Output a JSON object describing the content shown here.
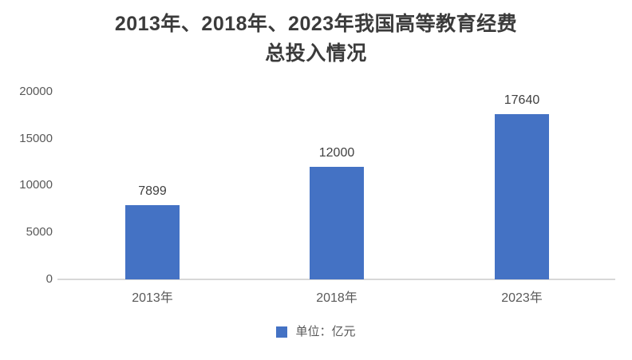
{
  "title": {
    "line1": "2013年、2018年、2023年我国高等教育经费",
    "line2": "总投入情况"
  },
  "chart_data": {
    "type": "bar",
    "title": "2013年、2018年、2023年我国高等教育经费总投入情况",
    "categories": [
      "2013年",
      "2018年",
      "2023年"
    ],
    "values": [
      7899,
      12000,
      17640
    ],
    "xlabel": "",
    "ylabel": "",
    "ylim": [
      0,
      20000
    ],
    "yticks": [
      20000,
      15000,
      10000,
      5000,
      0
    ],
    "grid": false,
    "bar_color": "#4472c4",
    "legend": {
      "position": "bottom",
      "label": "单位：亿元",
      "swatch_color": "#4472c4"
    }
  },
  "colors": {
    "title_text": "#3b3b3b",
    "axis_text": "#595959",
    "value_text": "#404040",
    "axis_line": "#d8d8d8",
    "background": "#ffffff"
  }
}
